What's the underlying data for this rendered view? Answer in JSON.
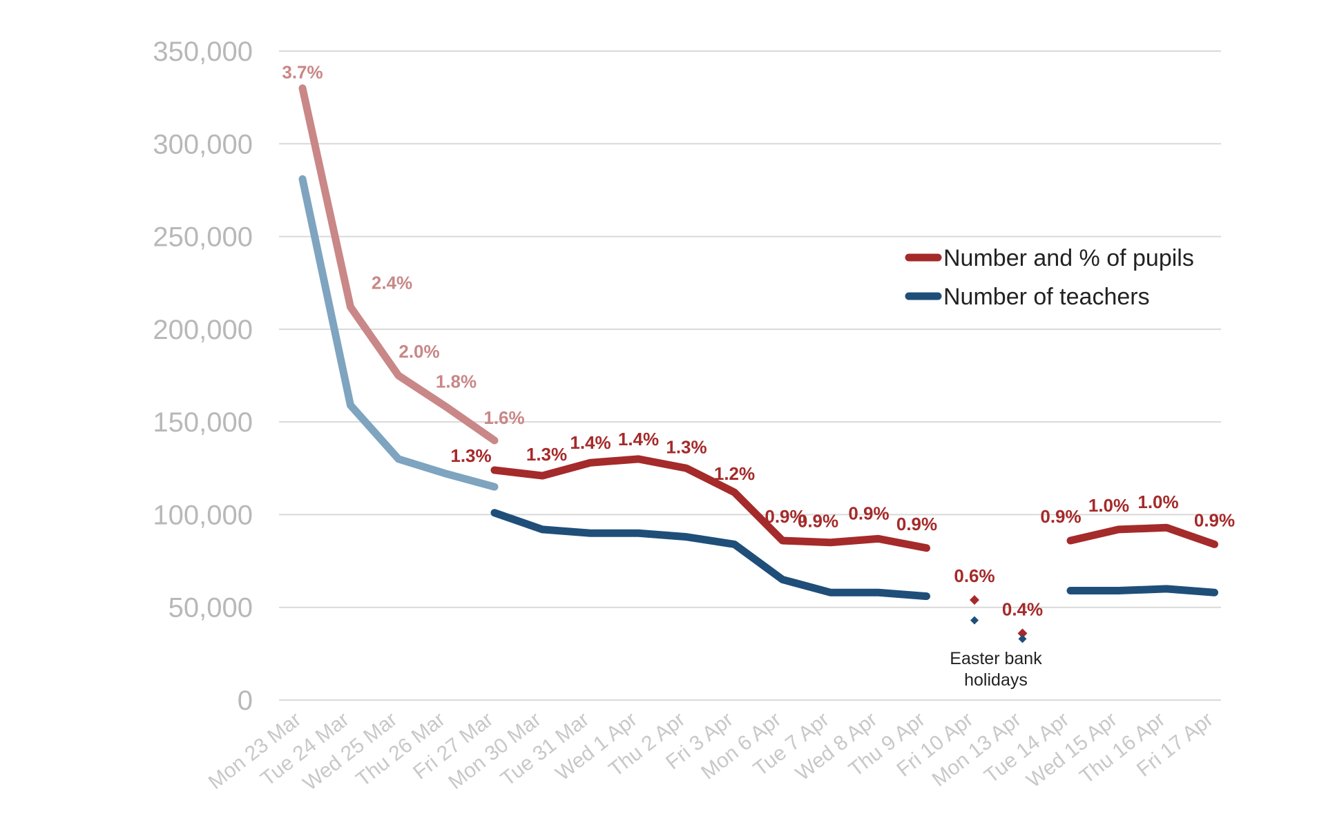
{
  "chart_data": {
    "type": "line",
    "title": "",
    "xlabel": "",
    "ylabel": "",
    "ylim": [
      0,
      350000
    ],
    "yticks": [
      0,
      50000,
      100000,
      150000,
      200000,
      250000,
      300000,
      350000
    ],
    "ytick_labels": [
      "0",
      "50,000",
      "100,000",
      "150,000",
      "200,000",
      "250,000",
      "300,000",
      "350,000"
    ],
    "grid": true,
    "legend_position": "right",
    "categories": [
      "Mon 23 Mar",
      "Tue 24 Mar",
      "Wed 25 Mar",
      "Thu 26 Mar",
      "Fri 27 Mar",
      "Mon 30 Mar",
      "Tue 31 Mar",
      "Wed 1 Apr",
      "Thu 2 Apr",
      "Fri 3 Apr",
      "Mon 6 Apr",
      "Tue 7 Apr",
      "Wed 8 Apr",
      "Thu 9 Apr",
      "Fri 10 Apr",
      "Mon 13 Apr",
      "Tue 14 Apr",
      "Wed 15 Apr",
      "Thu 16 Apr",
      "Fri 17 Apr"
    ],
    "series": [
      {
        "name": "Number and % of pupils",
        "color": "#a52a2a",
        "earlier_color": "#c98787",
        "values": [
          330000,
          212000,
          175000,
          158000,
          140000,
          121000,
          128000,
          130000,
          125000,
          112000,
          86000,
          85000,
          87000,
          82000,
          54000,
          36000,
          86000,
          92000,
          93000,
          84000
        ],
        "second_line_value_fri_27_mar": 124000,
        "labels": [
          "3.7%",
          "2.4%",
          "2.0%",
          "1.8%",
          "1.6%",
          "1.3%",
          "1.4%",
          "1.4%",
          "1.3%",
          "1.2%",
          "0.9%",
          "0.9%",
          "0.9%",
          "0.9%",
          "0.6%",
          "0.4%",
          "0.9%",
          "1.0%",
          "1.0%",
          "0.9%"
        ],
        "second_line_label_fri_27_mar": "1.3%"
      },
      {
        "name": "Number of teachers",
        "color": "#1f4e79",
        "earlier_color": "#7ea4bf",
        "values": [
          281000,
          159000,
          130000,
          122000,
          115000,
          92000,
          90000,
          90000,
          88000,
          84000,
          65000,
          58000,
          58000,
          56000,
          43000,
          33000,
          59000,
          59000,
          60000,
          58000
        ],
        "second_line_value_fri_27_mar": 101000
      }
    ],
    "annotation": {
      "text_line1": "Easter bank",
      "text_line2": "holidays"
    }
  }
}
